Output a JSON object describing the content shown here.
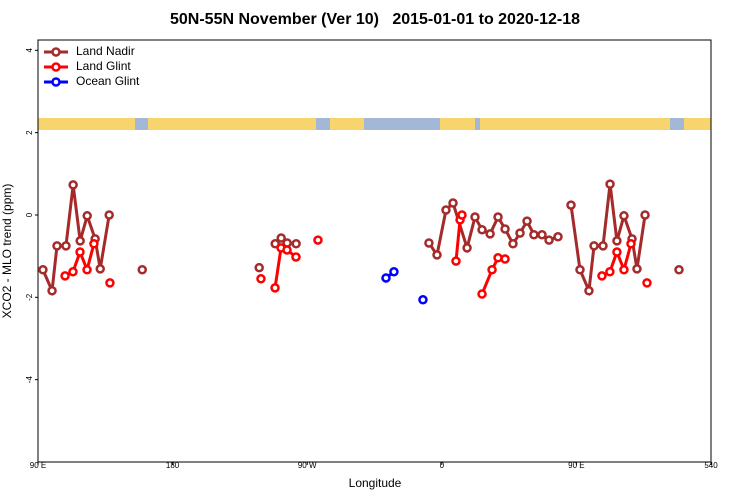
{
  "chart_data": {
    "type": "line",
    "title": "50N-55N November (Ver 10)   2015-01-01 to 2020-12-18",
    "xlabel": "Longitude",
    "ylabel": "XCO2 - MLO trend (ppm)",
    "xlim": [
      90,
      540
    ],
    "ylim": [
      -6,
      4.25
    ],
    "xticks": [
      {
        "value": 90,
        "label": "90 E"
      },
      180,
      {
        "value": 270,
        "label": "90 W"
      },
      {
        "value": 360,
        "label": "0"
      },
      {
        "value": 450,
        "label": "90 E"
      },
      540
    ],
    "yticks": [
      -4,
      -2,
      0,
      2,
      4
    ],
    "legend": "top-left",
    "series": [
      {
        "name": "Land Nadir",
        "color": "#a52a2a",
        "x": [
          93.3,
          99.4,
          102.7,
          108.7,
          113.5,
          118.2,
          122.9,
          128.2,
          131.6,
          137.6,
          null,
          159.7,
          null,
          237.9,
          null,
          248.6,
          252.6,
          256.6,
          262.6,
          null,
          351.4,
          356.8,
          362.8,
          367.5,
          376.9,
          382.2,
          386.9,
          392.3,
          397.6,
          402.3,
          407.6,
          412.3,
          417.0,
          421.6,
          427.0,
          431.7,
          437.7,
          null,
          446.4,
          452.4,
          458.4,
          461.8,
          467.8,
          472.5,
          477.1,
          481.8,
          487.2,
          490.5,
          495.9,
          null,
          518.6
        ],
        "values": [
          -1.33,
          -1.84,
          -0.75,
          -0.75,
          0.73,
          -0.63,
          -0.02,
          -0.58,
          -1.31,
          0,
          null,
          -1.33,
          null,
          -1.28,
          null,
          -0.7,
          -0.56,
          -0.68,
          -0.7,
          null,
          -0.68,
          -0.97,
          0.12,
          0.29,
          -0.8,
          -0.05,
          -0.36,
          -0.46,
          -0.05,
          -0.34,
          -0.7,
          -0.44,
          -0.15,
          -0.48,
          -0.48,
          -0.61,
          -0.53,
          null,
          0.24,
          -1.33,
          -1.84,
          -0.75,
          -0.75,
          0.75,
          -0.63,
          -0.02,
          -0.58,
          -1.31,
          0,
          null,
          -1.33
        ]
      },
      {
        "name": "Land Glint",
        "color": "#ff0000",
        "x": [
          108.1,
          113.4,
          118.1,
          122.8,
          127.4,
          null,
          138.1,
          null,
          239.1,
          null,
          248.5,
          252.5,
          256.5,
          262.5,
          null,
          277.2,
          null,
          369.5,
          372.2,
          373.5,
          null,
          386.9,
          393.6,
          397.6,
          402.3,
          null,
          467.1,
          472.4,
          477.1,
          481.8,
          486.5,
          null,
          497.2
        ],
        "values": [
          -1.48,
          -1.38,
          -0.9,
          -1.33,
          -0.7,
          null,
          -1.65,
          null,
          -1.55,
          null,
          -1.77,
          -0.8,
          -0.85,
          -1.02,
          null,
          -0.61,
          null,
          -1.12,
          -0.12,
          0,
          null,
          -1.92,
          -1.33,
          -1.04,
          -1.07,
          null,
          -1.48,
          -1.38,
          -0.9,
          -1.33,
          -0.7,
          null,
          -1.65
        ]
      },
      {
        "name": "Ocean Glint",
        "color": "#0000ff",
        "x": [
          322.7,
          328.0,
          null,
          347.4
        ],
        "values": [
          -1.53,
          -1.38,
          null,
          -2.06
        ]
      }
    ]
  }
}
